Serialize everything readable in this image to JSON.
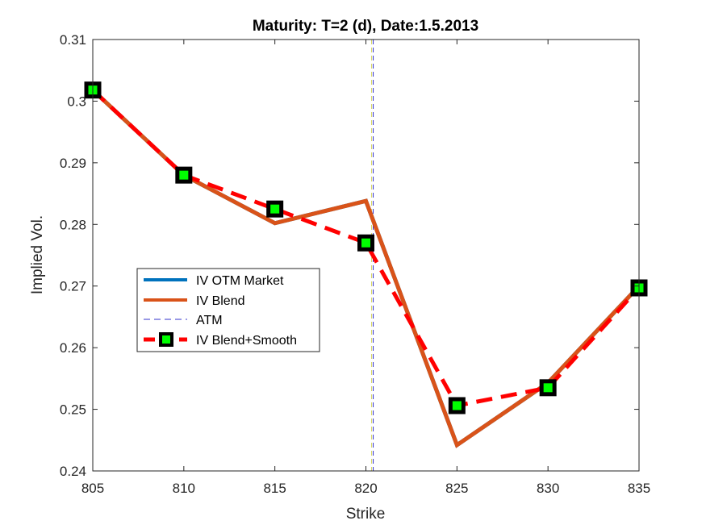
{
  "chart_data": {
    "type": "line",
    "title": "Maturity: T=2 (d), Date:1.5.2013",
    "xlabel": "Strike",
    "ylabel": "Implied Vol.",
    "xlim": [
      805,
      835
    ],
    "ylim": [
      0.24,
      0.31
    ],
    "xticks": [
      "805",
      "810",
      "815",
      "820",
      "825",
      "830",
      "835"
    ],
    "yticks": [
      "0.24",
      "0.25",
      "0.26",
      "0.27",
      "0.28",
      "0.29",
      "0.3",
      "0.31"
    ],
    "grid": false,
    "legend_position": "center-left",
    "atm_strike": 820.4,
    "series": [
      {
        "name": "IV OTM Market",
        "color": "#0072BD",
        "style": "solid",
        "x": [
          805,
          810,
          815,
          820,
          825,
          830,
          835
        ],
        "y": [
          0.3018,
          0.288,
          0.2802,
          0.2838,
          0.2442,
          0.2543,
          0.27
        ]
      },
      {
        "name": "IV Blend",
        "color": "#D95319",
        "style": "solid",
        "x": [
          805,
          810,
          815,
          820,
          825,
          830,
          835
        ],
        "y": [
          0.3018,
          0.288,
          0.2802,
          0.2838,
          0.2442,
          0.2543,
          0.27
        ]
      },
      {
        "name": "ATM",
        "color": "#3333cc",
        "style": "dashed-vertical"
      },
      {
        "name": "IV Blend+Smooth",
        "color": "#FF0000",
        "style": "dashed",
        "marker": "square",
        "marker_color": "#00FF00",
        "x": [
          805,
          810,
          815,
          820,
          825,
          830,
          835
        ],
        "y": [
          0.3018,
          0.288,
          0.2825,
          0.277,
          0.2506,
          0.2535,
          0.2697
        ]
      }
    ]
  }
}
